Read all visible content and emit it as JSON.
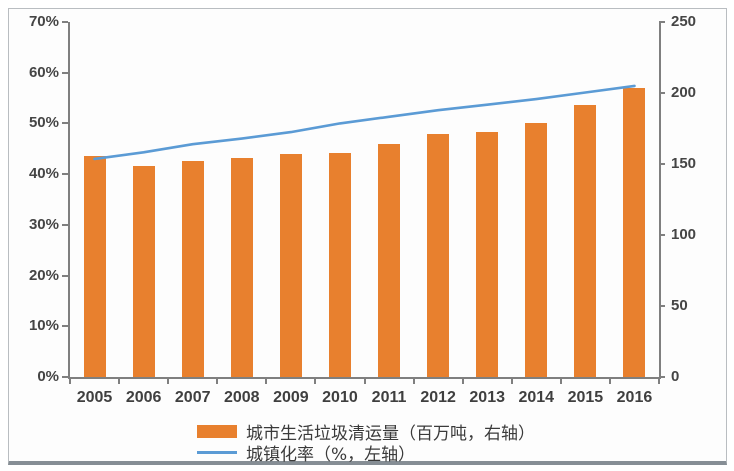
{
  "chart_data": {
    "type": "bar",
    "subtype": "combo-bar-line-dual-axis",
    "categories": [
      "2005",
      "2006",
      "2007",
      "2008",
      "2009",
      "2010",
      "2011",
      "2012",
      "2013",
      "2014",
      "2015",
      "2016"
    ],
    "series": [
      {
        "name": "城市生活垃圾清运量（百万吨，右轴）",
        "type": "bar",
        "axis": "right",
        "color": "#E8802E",
        "values": [
          155.8,
          148.4,
          152.2,
          154.4,
          157.3,
          158.1,
          164.0,
          170.8,
          172.4,
          178.6,
          191.4,
          203.6
        ]
      },
      {
        "name": "城镇化率（%，左轴）",
        "type": "line",
        "axis": "left",
        "color": "#5B9BD5",
        "values": [
          43.0,
          44.3,
          45.9,
          47.0,
          48.3,
          50.0,
          51.3,
          52.6,
          53.7,
          54.8,
          56.1,
          57.4
        ]
      }
    ],
    "left_axis": {
      "min": 0,
      "max": 70,
      "step": 10,
      "unit": "%",
      "tick_labels": [
        "70%",
        "60%",
        "50%",
        "40%",
        "30%",
        "20%",
        "10%",
        "0%"
      ]
    },
    "right_axis": {
      "min": 0,
      "max": 250,
      "step": 50,
      "tick_labels": [
        "250",
        "200",
        "150",
        "100",
        "50",
        "0"
      ]
    },
    "grid": false,
    "legend_position": "bottom",
    "title": ""
  },
  "legend": {
    "items": [
      {
        "label": "城市生活垃圾清运量（百万吨，右轴）",
        "swatch": "bar",
        "color": "#E8802E"
      },
      {
        "label": "城镇化率（%，左轴）",
        "swatch": "line",
        "color": "#5B9BD5"
      }
    ]
  },
  "colors": {
    "bar": "#E8802E",
    "line": "#5B9BD5",
    "axis": "#7f7f7f",
    "axis_text": "#454545",
    "frame_border": "#b9bdc1",
    "frame_bottom": "#868e95",
    "background": "#fdfdfd"
  }
}
